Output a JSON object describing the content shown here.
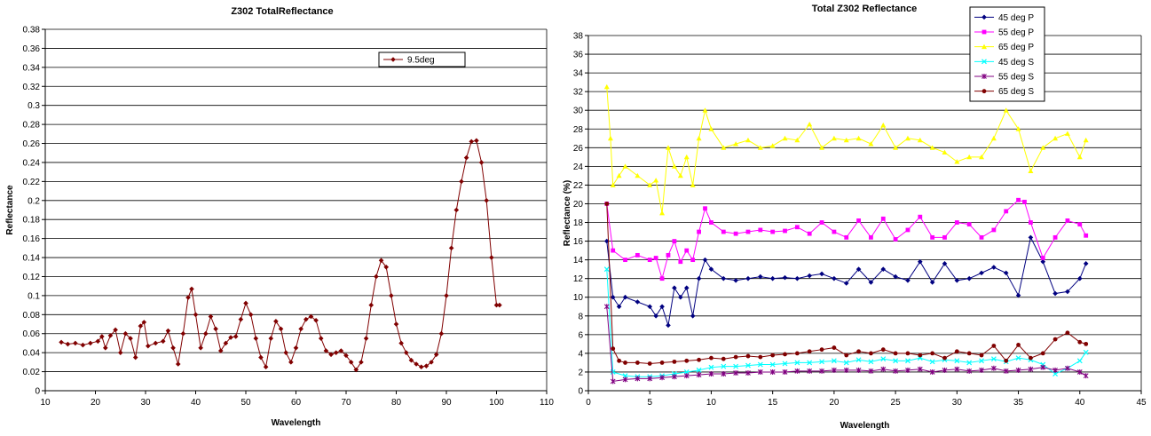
{
  "chart_data": [
    {
      "type": "line",
      "title": "Z302 TotalReflectance",
      "xlabel": "Wavelength",
      "ylabel": "Reflectance",
      "xlim": [
        10,
        110
      ],
      "ylim": [
        0,
        0.38
      ],
      "xticks": [
        "10",
        "20",
        "30",
        "40",
        "50",
        "60",
        "70",
        "80",
        "90",
        "100",
        "110"
      ],
      "yticks": [
        "0",
        "0.02",
        "0.04",
        "0.06",
        "0.08",
        "0.1",
        "0.12",
        "0.14",
        "0.16",
        "0.18",
        "0.2",
        "0.22",
        "0.24",
        "0.26",
        "0.28",
        "0.3",
        "0.32",
        "0.34",
        "0.36",
        "0.38"
      ],
      "grid": "horizontal",
      "legend_position": "top-right",
      "series": [
        {
          "name": "9.5deg",
          "color": "#800000",
          "marker": "diamond",
          "x": [
            13.2,
            14.5,
            16,
            17.5,
            19,
            20.5,
            21.3,
            22,
            23,
            24,
            25,
            26,
            27,
            28,
            29,
            29.7,
            30.5,
            32,
            33.5,
            34.5,
            35.5,
            36.5,
            37.5,
            38.5,
            39.2,
            40,
            41,
            42,
            43,
            44,
            45,
            46,
            47,
            48,
            49,
            50,
            51,
            52,
            53,
            54,
            55,
            56,
            57,
            58,
            59,
            60,
            61,
            62,
            63,
            64,
            65,
            66,
            67,
            68,
            69,
            70,
            71,
            72,
            73,
            74,
            75,
            76,
            77,
            78,
            79,
            80,
            81,
            82,
            83,
            84,
            85,
            86,
            87,
            88,
            89,
            90,
            91,
            92,
            93,
            94,
            95,
            96,
            97,
            98,
            99,
            100,
            100.6
          ],
          "y": [
            0.051,
            0.049,
            0.05,
            0.048,
            0.05,
            0.052,
            0.057,
            0.045,
            0.058,
            0.064,
            0.04,
            0.06,
            0.055,
            0.035,
            0.068,
            0.072,
            0.047,
            0.05,
            0.052,
            0.063,
            0.045,
            0.028,
            0.06,
            0.098,
            0.107,
            0.08,
            0.045,
            0.06,
            0.078,
            0.065,
            0.042,
            0.05,
            0.056,
            0.057,
            0.075,
            0.092,
            0.08,
            0.055,
            0.035,
            0.025,
            0.055,
            0.073,
            0.065,
            0.04,
            0.03,
            0.045,
            0.065,
            0.075,
            0.078,
            0.074,
            0.055,
            0.042,
            0.038,
            0.04,
            0.042,
            0.037,
            0.03,
            0.022,
            0.03,
            0.055,
            0.09,
            0.12,
            0.137,
            0.13,
            0.1,
            0.07,
            0.05,
            0.04,
            0.032,
            0.028,
            0.025,
            0.026,
            0.03,
            0.038,
            0.06,
            0.1,
            0.15,
            0.19,
            0.22,
            0.245,
            0.262,
            0.263,
            0.24,
            0.2,
            0.14,
            0.09,
            0.09
          ]
        }
      ]
    },
    {
      "type": "line",
      "title": "Total Z302 Reflectance",
      "xlabel": "Wavelength",
      "ylabel": "Reflectance (%)",
      "xlim": [
        0,
        45
      ],
      "ylim": [
        0,
        38
      ],
      "xticks": [
        "0",
        "5",
        "10",
        "15",
        "20",
        "25",
        "30",
        "35",
        "40",
        "45"
      ],
      "yticks": [
        "0",
        "2",
        "4",
        "6",
        "8",
        "10",
        "12",
        "14",
        "16",
        "18",
        "20",
        "22",
        "24",
        "26",
        "28",
        "30",
        "32",
        "34",
        "36",
        "38"
      ],
      "grid": "horizontal",
      "legend_position": "top-right",
      "series": [
        {
          "name": "45 deg  P",
          "color": "#000080",
          "marker": "diamond",
          "x": [
            1.5,
            2,
            2.5,
            3,
            4,
            5,
            5.5,
            6,
            6.5,
            7,
            7.5,
            8,
            8.5,
            9,
            9.5,
            10,
            11,
            12,
            13,
            14,
            15,
            16,
            17,
            18,
            19,
            20,
            21,
            22,
            23,
            24,
            25,
            26,
            27,
            28,
            29,
            30,
            31,
            32,
            33,
            34,
            35,
            36,
            37,
            38,
            39,
            40,
            40.5
          ],
          "y": [
            16,
            10,
            9,
            10,
            9.5,
            9,
            8,
            9,
            7,
            11,
            10,
            11,
            8,
            12,
            14,
            13,
            12,
            11.8,
            12,
            12.2,
            12,
            12.1,
            12,
            12.3,
            12.5,
            12,
            11.5,
            13,
            11.6,
            13,
            12.2,
            11.8,
            13.8,
            11.6,
            13.6,
            11.8,
            12,
            12.6,
            13.2,
            12.6,
            10.2,
            16.4,
            13.8,
            10.4,
            10.6,
            12,
            13.6
          ]
        },
        {
          "name": "55 deg P",
          "color": "#FF00FF",
          "marker": "square",
          "x": [
            1.5,
            2,
            3,
            4,
            5,
            5.5,
            6,
            6.5,
            7,
            7.5,
            8,
            8.5,
            9,
            9.5,
            10,
            11,
            12,
            13,
            14,
            15,
            16,
            17,
            18,
            19,
            20,
            21,
            22,
            23,
            24,
            25,
            26,
            27,
            28,
            29,
            30,
            31,
            32,
            33,
            34,
            35,
            35.5,
            36,
            37,
            38,
            39,
            40,
            40.5
          ],
          "y": [
            20,
            15,
            14,
            14.5,
            14,
            14.2,
            12,
            14.5,
            16,
            13.8,
            15,
            14,
            17,
            19.5,
            18,
            17,
            16.8,
            17,
            17.2,
            17,
            17.1,
            17.5,
            16.8,
            18,
            17,
            16.4,
            18.2,
            16.4,
            18.4,
            16.2,
            17.2,
            18.6,
            16.4,
            16.4,
            18,
            17.8,
            16.4,
            17.2,
            19.2,
            20.4,
            20.2,
            18,
            14.2,
            16.4,
            18.2,
            17.8,
            16.6
          ]
        },
        {
          "name": "65 deg P",
          "color": "#FFFF00",
          "marker": "triangle",
          "x": [
            1.5,
            1.8,
            2,
            2.5,
            3,
            4,
            5,
            5.5,
            6,
            6.5,
            7,
            7.5,
            8,
            8.5,
            9,
            9.5,
            10,
            11,
            12,
            13,
            14,
            15,
            16,
            17,
            18,
            19,
            20,
            21,
            22,
            23,
            24,
            25,
            26,
            27,
            28,
            29,
            30,
            31,
            32,
            33,
            34,
            35,
            36,
            37,
            38,
            39,
            40,
            40.5
          ],
          "y": [
            32.5,
            27,
            22,
            23,
            24,
            23,
            22,
            22.5,
            19,
            26,
            24,
            23,
            25,
            22,
            27,
            30,
            28,
            26,
            26.4,
            26.8,
            26,
            26.2,
            27,
            26.8,
            28.5,
            26,
            27,
            26.8,
            27,
            26.4,
            28.4,
            26,
            27,
            26.8,
            26,
            25.5,
            24.5,
            25,
            25,
            27,
            30,
            28,
            23.5,
            26,
            27,
            27.5,
            25,
            26.8
          ]
        },
        {
          "name": "45 deg S",
          "color": "#00FFFF",
          "marker": "x",
          "x": [
            1.5,
            2,
            3,
            4,
            5,
            6,
            7,
            8,
            9,
            10,
            11,
            12,
            13,
            14,
            15,
            16,
            17,
            18,
            19,
            20,
            21,
            22,
            23,
            24,
            25,
            26,
            27,
            28,
            29,
            30,
            31,
            32,
            33,
            34,
            35,
            36,
            37,
            38,
            39,
            40,
            40.5
          ],
          "y": [
            13,
            2,
            1.6,
            1.5,
            1.5,
            1.6,
            1.8,
            2,
            2.2,
            2.5,
            2.6,
            2.6,
            2.7,
            2.8,
            2.8,
            2.9,
            3,
            3,
            3.1,
            3.2,
            3,
            3.3,
            3.1,
            3.4,
            3.2,
            3.2,
            3.5,
            3.1,
            3.3,
            3.2,
            3,
            3.2,
            3.4,
            3.1,
            3.5,
            3.3,
            2.8,
            1.8,
            2.4,
            3.2,
            4.1
          ]
        },
        {
          "name": "55 deg S",
          "color": "#800080",
          "marker": "star",
          "x": [
            1.5,
            2,
            3,
            4,
            5,
            6,
            7,
            8,
            9,
            10,
            11,
            12,
            13,
            14,
            15,
            16,
            17,
            18,
            19,
            20,
            21,
            22,
            23,
            24,
            25,
            26,
            27,
            28,
            29,
            30,
            31,
            32,
            33,
            34,
            35,
            36,
            37,
            38,
            39,
            40,
            40.5
          ],
          "y": [
            9,
            1,
            1.2,
            1.3,
            1.3,
            1.4,
            1.5,
            1.6,
            1.7,
            1.8,
            1.8,
            1.9,
            1.9,
            2,
            2,
            2,
            2.1,
            2.1,
            2.1,
            2.2,
            2.2,
            2.2,
            2.1,
            2.3,
            2.1,
            2.2,
            2.3,
            2,
            2.2,
            2.3,
            2.1,
            2.2,
            2.4,
            2.1,
            2.2,
            2.3,
            2.5,
            2.2,
            2.4,
            2,
            1.6
          ]
        },
        {
          "name": "65 deg S",
          "color": "#800000",
          "marker": "circle",
          "x": [
            1.5,
            2,
            2.5,
            3,
            4,
            5,
            6,
            7,
            8,
            9,
            10,
            11,
            12,
            13,
            14,
            15,
            16,
            17,
            18,
            19,
            20,
            21,
            22,
            23,
            24,
            25,
            26,
            27,
            28,
            29,
            30,
            31,
            32,
            33,
            34,
            35,
            36,
            37,
            38,
            39,
            40,
            40.5
          ],
          "y": [
            20,
            4.5,
            3.2,
            3,
            3,
            2.9,
            3,
            3.1,
            3.2,
            3.3,
            3.5,
            3.4,
            3.6,
            3.7,
            3.6,
            3.8,
            3.9,
            4,
            4.2,
            4.4,
            4.6,
            3.8,
            4.2,
            4,
            4.4,
            4,
            4,
            3.8,
            4,
            3.5,
            4.2,
            4,
            3.8,
            4.8,
            3.2,
            4.9,
            3.5,
            4,
            5.5,
            6.2,
            5.2,
            5
          ]
        }
      ]
    }
  ]
}
